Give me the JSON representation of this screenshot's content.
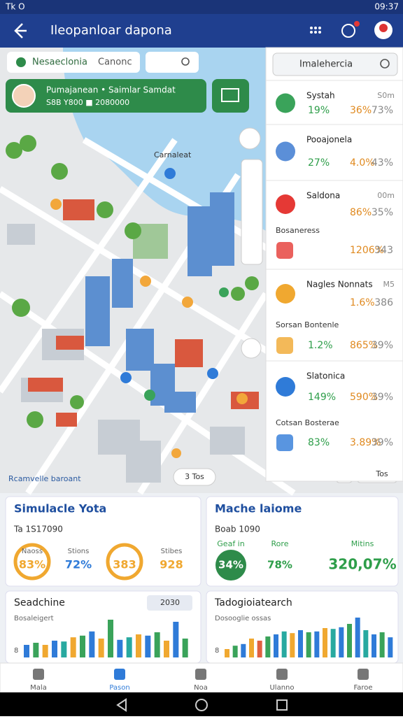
{
  "status": {
    "left": "Tk O",
    "time": "09:37"
  },
  "appbar": {
    "title": "Ileopanloar dapona"
  },
  "search": {
    "chip": "Nesaeclonia",
    "placeholder": "Canonc"
  },
  "profile": {
    "name": "Pumajanean • Saimlar Samdat",
    "sub": "S8B Y800 ■ 2080000"
  },
  "map": {
    "label": "Carnaleat",
    "corner": "Rcamvelle baroant",
    "pill": "3 Tos",
    "pill2": "Tos"
  },
  "panel": {
    "search": "Imalehercia",
    "rows": [
      {
        "title": "Systah",
        "right": "S0m",
        "values": [
          "19%",
          "36%",
          "73%"
        ]
      },
      {
        "title": "Pooajonela",
        "values": [
          "27%",
          "4.0%",
          "43%"
        ]
      },
      {
        "title": "Saldona",
        "right": "00m",
        "values": [
          "86%",
          "35%"
        ],
        "sub": {
          "title": "Bosaneress",
          "values": [
            "1206%",
            "343"
          ]
        }
      },
      {
        "title": "Nagles Nonnats",
        "right": "M5",
        "values": [
          "1.6%",
          "386"
        ],
        "sub": {
          "title": "Sorsan Bontenle",
          "values": [
            "1.2%",
            "865%",
            "39%"
          ]
        }
      },
      {
        "title": "Slatonica",
        "values": [
          "149%",
          "590%",
          "39%"
        ],
        "sub": {
          "title": "Cotsan Bosterae",
          "values": [
            "83%",
            "3.89%",
            "39%"
          ]
        }
      }
    ]
  },
  "cards": {
    "sim": {
      "title": "Simulacle Yota",
      "sub": "Ta 1S17090",
      "rings": [
        {
          "label": "Naoss",
          "value": "83%"
        },
        {
          "label": "Stions",
          "value": "72%"
        },
        {
          "label": "",
          "value": "383"
        },
        {
          "label": "Stibes",
          "value": "928"
        }
      ]
    },
    "mach": {
      "title": "Mache laiome",
      "sub": "Boab 1090",
      "items": [
        {
          "label": "Geaf in",
          "value": "34%"
        },
        {
          "label": "Rore",
          "value": "78%"
        },
        {
          "label": "Mitins",
          "value": "320,07%"
        }
      ]
    },
    "chart1": {
      "title": "Seadchine",
      "badge": "2030",
      "sub": "Bosaleigert",
      "axis": "8",
      "values": [
        30,
        35,
        30,
        40,
        38,
        48,
        52,
        62,
        45,
        90,
        42,
        48,
        55,
        52,
        60,
        40,
        85,
        45
      ],
      "colors": [
        "#2f7bd8",
        "#3aa35a",
        "#f0a830",
        "#2f7bd8",
        "#28a9a0",
        "#f0a830",
        "#3aa35a",
        "#2f7bd8",
        "#f0a830",
        "#3aa35a",
        "#2f7bd8",
        "#28a9a0",
        "#f0a830",
        "#2f7bd8",
        "#3aa35a",
        "#f0a830",
        "#2f7bd8",
        "#3aa35a"
      ]
    },
    "chart2": {
      "title": "Tadogioiatearch",
      "sub": "Dosooglie ossas",
      "axis": "8",
      "values": [
        20,
        28,
        32,
        45,
        40,
        50,
        55,
        62,
        58,
        65,
        60,
        62,
        70,
        68,
        72,
        80,
        95,
        65,
        55,
        60,
        48
      ],
      "colors": [
        "#f0a830",
        "#3aa35a",
        "#2f7bd8",
        "#f0a830",
        "#e06040",
        "#3aa35a",
        "#2f7bd8",
        "#28a9a0",
        "#f0a830",
        "#2f7bd8",
        "#3aa35a",
        "#2f7bd8",
        "#f0a830",
        "#28a9a0",
        "#2f7bd8",
        "#3aa35a",
        "#2f7bd8",
        "#28a9a0",
        "#2f7bd8",
        "#3aa35a",
        "#2f7bd8"
      ]
    }
  },
  "nav": [
    "Mala",
    "Pason",
    "Noa",
    "Ulanno",
    "Faroe"
  ]
}
